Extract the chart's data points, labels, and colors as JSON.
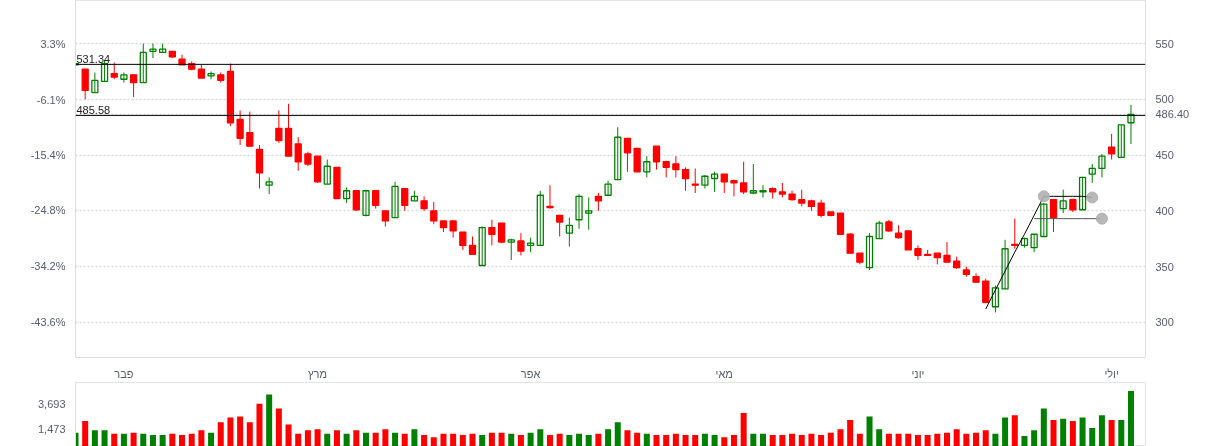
{
  "chart_data": [
    {
      "type": "candlestick",
      "categories": [
        null,
        null,
        null,
        null,
        null,
        "פבר",
        null,
        null,
        null,
        null,
        null,
        null,
        null,
        null,
        null,
        null,
        null,
        null,
        null,
        null,
        null,
        null,
        null,
        null,
        null,
        "מרץ",
        null,
        null,
        null,
        null,
        null,
        null,
        null,
        null,
        null,
        null,
        null,
        null,
        null,
        null,
        null,
        null,
        null,
        null,
        null,
        null,
        null,
        "אפר",
        null,
        null,
        null,
        null,
        null,
        null,
        null,
        null,
        null,
        null,
        null,
        null,
        null,
        null,
        null,
        null,
        null,
        null,
        null,
        "מאי",
        null,
        null,
        null,
        null,
        null,
        null,
        null,
        null,
        null,
        null,
        null,
        null,
        null,
        null,
        null,
        null,
        null,
        null,
        null,
        "יוני",
        null,
        null,
        null,
        null,
        null,
        null,
        null,
        null,
        null,
        null,
        null,
        null,
        null,
        null,
        null,
        null,
        null,
        null,
        null,
        "יולי",
        null,
        null
      ],
      "ohlc": [
        [
          531,
          533,
          530,
          532
        ],
        [
          527,
          527,
          500,
          508
        ],
        [
          506,
          524,
          506,
          517
        ],
        [
          516,
          535,
          516,
          532
        ],
        [
          523,
          533,
          518,
          520
        ],
        [
          518,
          524,
          515,
          522
        ],
        [
          522,
          522,
          502,
          515
        ],
        [
          515,
          550,
          515,
          542
        ],
        [
          543,
          550,
          537,
          545
        ],
        [
          542,
          550,
          542,
          545
        ],
        [
          543,
          543,
          537,
          538
        ],
        [
          536,
          540,
          531,
          531
        ],
        [
          532,
          534,
          526,
          527
        ],
        [
          527,
          531,
          519,
          519
        ],
        [
          521,
          525,
          518,
          523
        ],
        [
          522,
          524,
          515,
          517
        ],
        [
          525,
          532,
          476,
          479
        ],
        [
          482,
          490,
          459,
          465
        ],
        [
          470,
          489,
          458,
          458
        ],
        [
          455,
          459,
          420,
          434
        ],
        [
          423,
          430,
          415,
          426
        ],
        [
          474,
          490,
          461,
          463
        ],
        [
          474,
          496,
          449,
          449
        ],
        [
          460,
          466,
          436,
          444
        ],
        [
          451,
          453,
          440,
          442
        ],
        [
          449,
          449,
          425,
          426
        ],
        [
          424,
          446,
          424,
          440
        ],
        [
          439,
          439,
          411,
          411
        ],
        [
          411,
          421,
          407,
          418
        ],
        [
          418,
          418,
          400,
          401
        ],
        [
          396,
          419,
          395,
          418
        ],
        [
          418,
          418,
          402,
          405
        ],
        [
          400,
          400,
          386,
          391
        ],
        [
          394,
          426,
          394,
          422
        ],
        [
          420,
          420,
          400,
          405
        ],
        [
          409,
          418,
          409,
          413
        ],
        [
          409,
          413,
          400,
          402
        ],
        [
          400,
          408,
          388,
          391
        ],
        [
          391,
          391,
          381,
          385
        ],
        [
          391,
          391,
          376,
          382
        ],
        [
          381,
          381,
          365,
          369
        ],
        [
          369,
          377,
          361,
          361
        ],
        [
          351,
          386,
          351,
          385
        ],
        [
          385,
          392,
          369,
          379
        ],
        [
          389,
          389,
          371,
          372
        ],
        [
          372,
          375,
          356,
          374
        ],
        [
          373,
          380,
          360,
          364
        ],
        [
          369,
          376,
          363,
          371
        ],
        [
          369,
          418,
          369,
          414
        ],
        [
          404,
          423,
          402,
          403
        ],
        [
          396,
          396,
          377,
          390
        ],
        [
          380,
          394,
          368,
          387
        ],
        [
          392,
          415,
          384,
          413
        ],
        [
          398,
          412,
          383,
          400
        ],
        [
          413,
          416,
          400,
          409
        ],
        [
          414,
          427,
          414,
          424
        ],
        [
          428,
          475,
          428,
          466
        ],
        [
          465,
          465,
          435,
          452
        ],
        [
          456,
          456,
          435,
          435
        ],
        [
          435,
          449,
          430,
          444
        ],
        [
          458,
          458,
          437,
          444
        ],
        [
          444,
          445,
          430,
          439
        ],
        [
          442,
          449,
          430,
          437
        ],
        [
          437,
          439,
          418,
          429
        ],
        [
          424,
          438,
          416,
          423
        ],
        [
          423,
          432,
          420,
          431
        ],
        [
          429,
          435,
          417,
          433
        ],
        [
          433,
          433,
          416,
          426
        ],
        [
          427,
          428,
          413,
          425
        ],
        [
          425,
          444,
          415,
          417
        ],
        [
          416,
          442,
          415,
          418
        ],
        [
          417,
          423,
          412,
          418
        ],
        [
          420,
          421,
          411,
          417
        ],
        [
          417,
          425,
          412,
          415
        ],
        [
          415,
          418,
          409,
          410
        ],
        [
          410,
          419,
          404,
          407
        ],
        [
          409,
          410,
          400,
          404
        ],
        [
          407,
          410,
          394,
          396
        ],
        [
          399,
          399,
          395,
          396
        ],
        [
          398,
          398,
          379,
          379
        ],
        [
          379,
          380,
          362,
          362
        ],
        [
          362,
          362,
          352,
          354
        ],
        [
          349,
          380,
          347,
          377
        ],
        [
          375,
          391,
          375,
          389
        ],
        [
          390,
          392,
          381,
          382
        ],
        [
          380,
          387,
          375,
          376
        ],
        [
          382,
          382,
          365,
          365
        ],
        [
          366,
          369,
          356,
          360
        ],
        [
          361,
          365,
          360,
          360
        ],
        [
          362,
          362,
          352,
          358
        ],
        [
          360,
          372,
          354,
          354
        ],
        [
          355,
          359,
          348,
          349
        ],
        [
          347,
          350,
          341,
          343
        ],
        [
          341,
          344,
          336,
          336
        ],
        [
          337,
          339,
          317,
          318
        ],
        [
          314,
          333,
          309,
          331
        ],
        [
          330,
          374,
          330,
          366
        ],
        [
          370,
          393,
          366,
          369
        ],
        [
          369,
          376,
          367,
          375
        ],
        [
          367,
          379,
          363,
          379
        ],
        [
          377,
          407,
          377,
          406
        ],
        [
          410,
          410,
          381,
          394
        ],
        [
          402,
          419,
          398,
          409
        ],
        [
          410,
          411,
          399,
          401
        ],
        [
          401,
          430,
          401,
          430
        ],
        [
          433,
          442,
          425,
          438
        ],
        [
          438,
          451,
          430,
          449
        ],
        [
          457,
          469,
          446,
          451
        ],
        [
          448,
          477,
          448,
          477
        ],
        [
          479,
          495,
          460,
          486.4
        ]
      ],
      "colors": [
        "#008000",
        "#ff0000",
        "#008000",
        "#008000",
        "#ff0000",
        "#008000",
        "#ff0000",
        "#008000",
        "#008000",
        "#008000",
        "#ff0000",
        "#ff0000",
        "#ff0000",
        "#ff0000",
        "#008000",
        "#ff0000",
        "#ff0000",
        "#ff0000",
        "#ff0000",
        "#ff0000",
        "#008000",
        "#ff0000",
        "#ff0000",
        "#ff0000",
        "#ff0000",
        "#ff0000",
        "#008000",
        "#ff0000",
        "#008000",
        "#ff0000",
        "#008000",
        "#ff0000",
        "#ff0000",
        "#008000",
        "#ff0000",
        "#008000",
        "#ff0000",
        "#ff0000",
        "#ff0000",
        "#ff0000",
        "#ff0000",
        "#ff0000",
        "#008000",
        "#ff0000",
        "#ff0000",
        "#008000",
        "#ff0000",
        "#008000",
        "#008000",
        "#ff0000",
        "#ff0000",
        "#008000",
        "#008000",
        "#008000",
        "#ff0000",
        "#008000",
        "#008000",
        "#ff0000",
        "#ff0000",
        "#008000",
        "#ff0000",
        "#ff0000",
        "#ff0000",
        "#ff0000",
        "#ff0000",
        "#008000",
        "#008000",
        "#ff0000",
        "#ff0000",
        "#ff0000",
        "#008000",
        "#008000",
        "#ff0000",
        "#ff0000",
        "#ff0000",
        "#ff0000",
        "#ff0000",
        "#ff0000",
        "#ff0000",
        "#ff0000",
        "#ff0000",
        "#ff0000",
        "#008000",
        "#008000",
        "#ff0000",
        "#ff0000",
        "#ff0000",
        "#ff0000",
        "#ff0000",
        "#ff0000",
        "#ff0000",
        "#ff0000",
        "#ff0000",
        "#ff0000",
        "#ff0000",
        "#008000",
        "#008000",
        "#ff0000",
        "#008000",
        "#008000",
        "#008000",
        "#ff0000",
        "#008000",
        "#ff0000",
        "#008000",
        "#008000",
        "#008000",
        "#ff0000",
        "#008000",
        "#008000"
      ],
      "ylim": [
        268.5,
        588.6
      ],
      "yticks": [
        300,
        350,
        400,
        450,
        500,
        550,
        {
          "value": 486.4,
          "label": "486.40"
        }
      ],
      "y2lim": [
        -49.6,
        10.6
      ],
      "y2ticks": [
        {
          "value": 3.3,
          "label": "3.3%"
        },
        {
          "value": -6.1,
          "label": "-6.1%"
        },
        {
          "value": -15.4,
          "label": "-15.4%"
        },
        {
          "value": -24.8,
          "label": "-24.8%"
        },
        {
          "value": -34.2,
          "label": "-34.2%"
        },
        {
          "value": -43.6,
          "label": "-43.6%"
        }
      ],
      "grid": "y",
      "ref_lines": [
        {
          "axis": "y",
          "value": 531.34,
          "label": "531.34",
          "color": "#000000"
        },
        {
          "axis": "y",
          "value": 485.58,
          "label": "485.58",
          "color": "#000000"
        }
      ],
      "series": [
        {
          "type": "line",
          "color": "#000000",
          "values": [
            null,
            null,
            null,
            null,
            null,
            null,
            null,
            null,
            null,
            null,
            null,
            null,
            null,
            null,
            null,
            null,
            null,
            null,
            null,
            null,
            null,
            null,
            null,
            null,
            null,
            null,
            null,
            null,
            null,
            null,
            null,
            null,
            null,
            null,
            null,
            null,
            null,
            null,
            null,
            null,
            null,
            null,
            null,
            null,
            null,
            null,
            null,
            null,
            null,
            null,
            null,
            null,
            null,
            null,
            null,
            null,
            null,
            null,
            null,
            null,
            null,
            null,
            null,
            null,
            null,
            null,
            null,
            null,
            null,
            null,
            null,
            null,
            null,
            null,
            null,
            null,
            null,
            null,
            null,
            null,
            null,
            null,
            null,
            null,
            null,
            null,
            null,
            null,
            null,
            null,
            null,
            null,
            null,
            null,
            312,
            329,
            346,
            363,
            379,
            396,
            413,
            null,
            null,
            null,
            null,
            null,
            null,
            null,
            null,
            null
          ]
        },
        {
          "type": "line",
          "color": "#000000",
          "values": [
            null,
            null,
            null,
            null,
            null,
            null,
            null,
            null,
            null,
            null,
            null,
            null,
            null,
            null,
            null,
            null,
            null,
            null,
            null,
            null,
            null,
            null,
            null,
            null,
            null,
            null,
            null,
            null,
            null,
            null,
            null,
            null,
            null,
            null,
            null,
            null,
            null,
            null,
            null,
            null,
            null,
            null,
            null,
            null,
            null,
            null,
            null,
            null,
            null,
            null,
            null,
            null,
            null,
            null,
            null,
            null,
            null,
            null,
            null,
            null,
            null,
            null,
            null,
            null,
            null,
            null,
            null,
            null,
            null,
            null,
            null,
            null,
            null,
            null,
            null,
            null,
            null,
            null,
            null,
            null,
            null,
            null,
            null,
            null,
            null,
            null,
            null,
            null,
            null,
            null,
            null,
            null,
            null,
            null,
            null,
            null,
            null,
            null,
            null,
            null,
            413,
            413,
            413,
            413,
            413,
            412,
            null,
            null,
            null,
            null
          ]
        },
        {
          "type": "line",
          "color": "#555555",
          "values": [
            null,
            null,
            null,
            null,
            null,
            null,
            null,
            null,
            null,
            null,
            null,
            null,
            null,
            null,
            null,
            null,
            null,
            null,
            null,
            null,
            null,
            null,
            null,
            null,
            null,
            null,
            null,
            null,
            null,
            null,
            null,
            null,
            null,
            null,
            null,
            null,
            null,
            null,
            null,
            null,
            null,
            null,
            null,
            null,
            null,
            null,
            null,
            null,
            null,
            null,
            null,
            null,
            null,
            null,
            null,
            null,
            null,
            null,
            null,
            null,
            null,
            null,
            null,
            null,
            null,
            null,
            null,
            null,
            null,
            null,
            null,
            null,
            null,
            null,
            null,
            null,
            null,
            null,
            null,
            null,
            null,
            null,
            null,
            null,
            null,
            null,
            null,
            null,
            null,
            null,
            null,
            null,
            null,
            null,
            null,
            null,
            null,
            null,
            null,
            393,
            393,
            393,
            393,
            393,
            393,
            393,
            393,
            null,
            null,
            null
          ]
        },
        {
          "type": "scatter",
          "color": "#b0b0b0",
          "marker": "circle",
          "values": [
            null,
            null,
            null,
            null,
            null,
            null,
            null,
            null,
            null,
            null,
            null,
            null,
            null,
            null,
            null,
            null,
            null,
            null,
            null,
            null,
            null,
            null,
            null,
            null,
            null,
            null,
            null,
            null,
            null,
            null,
            null,
            null,
            null,
            null,
            null,
            null,
            null,
            null,
            null,
            null,
            null,
            null,
            null,
            null,
            null,
            null,
            null,
            null,
            null,
            null,
            null,
            null,
            null,
            null,
            null,
            null,
            null,
            null,
            null,
            null,
            null,
            null,
            null,
            null,
            null,
            null,
            null,
            null,
            null,
            null,
            null,
            null,
            null,
            null,
            null,
            null,
            null,
            null,
            null,
            null,
            null,
            null,
            null,
            null,
            null,
            null,
            null,
            null,
            null,
            null,
            null,
            null,
            null,
            null,
            null,
            null,
            null,
            null,
            null,
            null,
            413,
            null,
            null,
            null,
            null,
            412,
            393,
            null,
            null,
            null
          ]
        }
      ]
    },
    {
      "type": "bar",
      "categories": [
        null,
        null,
        null,
        null,
        null,
        null,
        null,
        null,
        null,
        null,
        null,
        null,
        null,
        null,
        null,
        null,
        null,
        null,
        null,
        null,
        null,
        null,
        null,
        null,
        null,
        null,
        null,
        null,
        null,
        null,
        null,
        null,
        null,
        null,
        null,
        null,
        null,
        null,
        null,
        null,
        null,
        null,
        null,
        null,
        null,
        null,
        null,
        null,
        null,
        null,
        null,
        null,
        null,
        null,
        null,
        null,
        null,
        null,
        null,
        null,
        null,
        null,
        null,
        null,
        null,
        null,
        null,
        null,
        null,
        null,
        null,
        null,
        null,
        null,
        null,
        null,
        null,
        null,
        null,
        null,
        null,
        null,
        null,
        null,
        null,
        null,
        null,
        null,
        null,
        null,
        null,
        null,
        null,
        null,
        null,
        null,
        null,
        null,
        null,
        null,
        null,
        null,
        null,
        null,
        null,
        null,
        null,
        null,
        null,
        null
      ],
      "values": [
        1200,
        2200,
        1400,
        1400,
        1100,
        1100,
        1200,
        1100,
        1000,
        1000,
        1100,
        1000,
        1100,
        1400,
        1200,
        2100,
        2500,
        2600,
        2100,
        3700,
        4500,
        3300,
        1900,
        1100,
        1400,
        1500,
        1100,
        1400,
        1100,
        1400,
        1200,
        1200,
        1500,
        1200,
        1100,
        1500,
        1000,
        800,
        1100,
        1100,
        1000,
        1100,
        1000,
        1200,
        1200,
        1100,
        1000,
        1200,
        1500,
        1000,
        1100,
        1000,
        1100,
        1000,
        1100,
        1500,
        2100,
        1400,
        1200,
        1100,
        1000,
        1000,
        1100,
        1000,
        1000,
        1100,
        1000,
        800,
        1000,
        2900,
        1100,
        1100,
        1000,
        1000,
        1100,
        1000,
        1100,
        1000,
        1200,
        1500,
        2300,
        1100,
        2600,
        1500,
        1100,
        1100,
        1100,
        1000,
        1000,
        1100,
        1200,
        1500,
        1100,
        1200,
        1400,
        1100,
        2500,
        2700,
        900,
        1400,
        3300,
        2300,
        2400,
        2200,
        2500,
        1600,
        2700,
        2300,
        2300,
        4800
      ],
      "colors": [
        "#008000",
        "#ff0000",
        "#008000",
        "#008000",
        "#ff0000",
        "#008000",
        "#ff0000",
        "#008000",
        "#008000",
        "#008000",
        "#ff0000",
        "#ff0000",
        "#ff0000",
        "#ff0000",
        "#008000",
        "#ff0000",
        "#ff0000",
        "#ff0000",
        "#ff0000",
        "#ff0000",
        "#008000",
        "#ff0000",
        "#ff0000",
        "#ff0000",
        "#ff0000",
        "#ff0000",
        "#008000",
        "#ff0000",
        "#008000",
        "#ff0000",
        "#008000",
        "#ff0000",
        "#ff0000",
        "#008000",
        "#ff0000",
        "#008000",
        "#ff0000",
        "#ff0000",
        "#ff0000",
        "#ff0000",
        "#ff0000",
        "#ff0000",
        "#008000",
        "#ff0000",
        "#ff0000",
        "#008000",
        "#ff0000",
        "#008000",
        "#008000",
        "#ff0000",
        "#ff0000",
        "#008000",
        "#008000",
        "#008000",
        "#ff0000",
        "#008000",
        "#008000",
        "#ff0000",
        "#ff0000",
        "#008000",
        "#ff0000",
        "#ff0000",
        "#ff0000",
        "#ff0000",
        "#ff0000",
        "#008000",
        "#008000",
        "#ff0000",
        "#ff0000",
        "#ff0000",
        "#008000",
        "#008000",
        "#ff0000",
        "#ff0000",
        "#ff0000",
        "#ff0000",
        "#ff0000",
        "#ff0000",
        "#ff0000",
        "#ff0000",
        "#ff0000",
        "#ff0000",
        "#008000",
        "#008000",
        "#ff0000",
        "#ff0000",
        "#ff0000",
        "#ff0000",
        "#ff0000",
        "#ff0000",
        "#ff0000",
        "#ff0000",
        "#ff0000",
        "#ff0000",
        "#ff0000",
        "#008000",
        "#008000",
        "#ff0000",
        "#008000",
        "#008000",
        "#008000",
        "#ff0000",
        "#008000",
        "#ff0000",
        "#008000",
        "#008000",
        "#008000",
        "#ff0000",
        "#008000",
        "#008000"
      ],
      "ylim": [
        0,
        5540
      ],
      "yticks": [
        {
          "value": 1473,
          "label": "1,473"
        },
        {
          "value": 3693,
          "label": "3,693"
        }
      ],
      "tick_labels": "y"
    }
  ]
}
